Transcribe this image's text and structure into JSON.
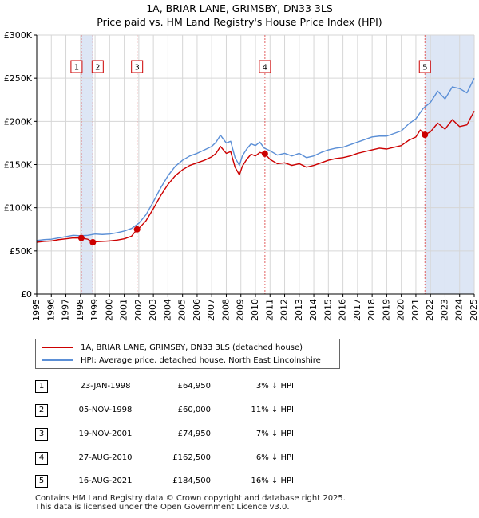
{
  "title_line1": "1A, BRIAR LANE, GRIMSBY, DN33 3LS",
  "title_line2": "Price paid vs. HM Land Registry's House Price Index (HPI)",
  "legend": {
    "property_label": "1A, BRIAR LANE, GRIMSBY, DN33 3LS (detached house)",
    "hpi_label": "HPI: Average price, detached house, North East Lincolnshire"
  },
  "sales": [
    {
      "num": "1",
      "date": "23-JAN-1998",
      "price": "£64,950",
      "hpi": "3% ↓ HPI"
    },
    {
      "num": "2",
      "date": "05-NOV-1998",
      "price": "£60,000",
      "hpi": "11% ↓ HPI"
    },
    {
      "num": "3",
      "date": "19-NOV-2001",
      "price": "£74,950",
      "hpi": "7% ↓ HPI"
    },
    {
      "num": "4",
      "date": "27-AUG-2010",
      "price": "£162,500",
      "hpi": "6% ↓ HPI"
    },
    {
      "num": "5",
      "date": "16-AUG-2021",
      "price": "£184,500",
      "hpi": "16% ↓ HPI"
    }
  ],
  "footer": {
    "line1": "Contains HM Land Registry data © Crown copyright and database right 2025.",
    "line2": "This data is licensed under the Open Government Licence v3.0."
  },
  "chart_data": {
    "type": "line",
    "title": "1A, BRIAR LANE, GRIMSBY, DN33 3LS — Price paid vs. HM Land Registry's House Price Index (HPI)",
    "xlim": [
      1995,
      2025
    ],
    "ylim": [
      0,
      300000
    ],
    "x_ticks": [
      1995,
      1996,
      1997,
      1998,
      1999,
      2000,
      2001,
      2002,
      2003,
      2004,
      2005,
      2006,
      2007,
      2008,
      2009,
      2010,
      2011,
      2012,
      2013,
      2014,
      2015,
      2016,
      2017,
      2018,
      2019,
      2020,
      2021,
      2022,
      2023,
      2024,
      2025
    ],
    "y_ticks": [
      {
        "value": 0,
        "label": "£0"
      },
      {
        "value": 50000,
        "label": "£50K"
      },
      {
        "value": 100000,
        "label": "£100K"
      },
      {
        "value": 150000,
        "label": "£150K"
      },
      {
        "value": 200000,
        "label": "£200K"
      },
      {
        "value": 250000,
        "label": "£250K"
      },
      {
        "value": 300000,
        "label": "£300K"
      }
    ],
    "colors": {
      "property": "#cc0000",
      "hpi": "#5b8fd6",
      "shade": "#dde6f5",
      "vline": "#e06060"
    },
    "series": [
      {
        "name": "HPI: Average price, detached house, North East Lincolnshire",
        "x": [
          1995.0,
          1995.5,
          1996.0,
          1996.5,
          1997.0,
          1997.5,
          1998.0,
          1998.5,
          1999.0,
          1999.5,
          2000.0,
          2000.5,
          2001.0,
          2001.5,
          2002.0,
          2002.5,
          2003.0,
          2003.5,
          2004.0,
          2004.5,
          2005.0,
          2005.5,
          2006.0,
          2006.5,
          2007.0,
          2007.3,
          2007.6,
          2008.0,
          2008.3,
          2008.6,
          2008.9,
          2009.1,
          2009.4,
          2009.7,
          2010.0,
          2010.3,
          2010.6,
          2011.0,
          2011.5,
          2012.0,
          2012.5,
          2013.0,
          2013.5,
          2014.0,
          2014.5,
          2015.0,
          2015.5,
          2016.0,
          2016.5,
          2017.0,
          2017.5,
          2018.0,
          2018.5,
          2019.0,
          2019.5,
          2020.0,
          2020.5,
          2021.0,
          2021.5,
          2022.0,
          2022.5,
          2023.0,
          2023.5,
          2024.0,
          2024.5,
          2025.0
        ],
        "y": [
          62000,
          63000,
          63500,
          65000,
          66500,
          68000,
          67500,
          68000,
          69500,
          69000,
          69500,
          71000,
          73000,
          76000,
          82000,
          92000,
          107000,
          123000,
          137000,
          148000,
          155000,
          160000,
          163000,
          167000,
          171000,
          176000,
          184000,
          175000,
          177000,
          158000,
          149000,
          160000,
          168000,
          174000,
          172000,
          176000,
          169000,
          166000,
          161000,
          163000,
          160000,
          163000,
          158000,
          160000,
          164000,
          167000,
          169000,
          170000,
          173000,
          176000,
          179000,
          182000,
          183000,
          183000,
          186000,
          189000,
          197000,
          203000,
          215000,
          222000,
          235000,
          226000,
          240000,
          238000,
          233000,
          250000
        ]
      },
      {
        "name": "1A, BRIAR LANE, GRIMSBY, DN33 3LS (detached house)",
        "x": [
          1995.0,
          1995.5,
          1996.0,
          1996.5,
          1997.0,
          1997.5,
          1998.06,
          1998.5,
          1998.85,
          1999.0,
          1999.5,
          2000.0,
          2000.5,
          2001.0,
          2001.5,
          2001.88,
          2002.0,
          2002.5,
          2003.0,
          2003.5,
          2004.0,
          2004.5,
          2005.0,
          2005.5,
          2006.0,
          2006.5,
          2007.0,
          2007.3,
          2007.6,
          2008.0,
          2008.3,
          2008.6,
          2008.9,
          2009.1,
          2009.4,
          2009.7,
          2010.0,
          2010.3,
          2010.65,
          2011.0,
          2011.5,
          2012.0,
          2012.5,
          2013.0,
          2013.5,
          2014.0,
          2014.5,
          2015.0,
          2015.5,
          2016.0,
          2016.5,
          2017.0,
          2017.5,
          2018.0,
          2018.5,
          2019.0,
          2019.5,
          2020.0,
          2020.5,
          2021.0,
          2021.3,
          2021.62,
          2022.0,
          2022.5,
          2023.0,
          2023.5,
          2024.0,
          2024.5,
          2025.0
        ],
        "y": [
          60000,
          61000,
          61500,
          63000,
          64000,
          65000,
          64950,
          63500,
          60000,
          60500,
          61000,
          61500,
          62500,
          64000,
          67000,
          74950,
          76000,
          85000,
          99000,
          114000,
          127000,
          137000,
          144000,
          149000,
          152000,
          155000,
          159000,
          163000,
          171000,
          163000,
          165000,
          147000,
          138000,
          148000,
          156000,
          162000,
          160000,
          164000,
          162500,
          156000,
          151000,
          152000,
          149000,
          151000,
          147000,
          149000,
          152000,
          155000,
          157000,
          158000,
          160000,
          163000,
          165000,
          167000,
          169000,
          168000,
          170000,
          172000,
          178000,
          182000,
          190000,
          184500,
          188000,
          198000,
          191000,
          202000,
          194000,
          196000,
          212000
        ]
      }
    ],
    "sales_points": [
      {
        "label": "1",
        "x": 1998.06,
        "y": 64950
      },
      {
        "label": "2",
        "x": 1998.85,
        "y": 60000
      },
      {
        "label": "3",
        "x": 2001.88,
        "y": 74950
      },
      {
        "label": "4",
        "x": 2010.65,
        "y": 162500
      },
      {
        "label": "5",
        "x": 2021.62,
        "y": 184500
      }
    ],
    "shaded_regions": [
      [
        1998.06,
        1998.85
      ],
      [
        2021.62,
        2025.0
      ]
    ]
  }
}
